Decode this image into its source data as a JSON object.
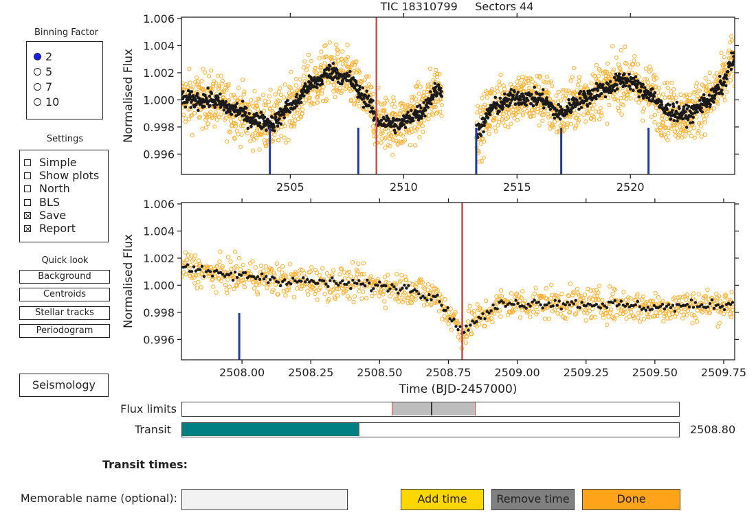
{
  "binning": {
    "title": "Binning Factor",
    "options": [
      {
        "label": "2",
        "selected": true
      },
      {
        "label": "5",
        "selected": false
      },
      {
        "label": "7",
        "selected": false
      },
      {
        "label": "10",
        "selected": false
      }
    ]
  },
  "settings": {
    "title": "Settings",
    "options": [
      {
        "label": "Simple",
        "checked": false
      },
      {
        "label": "Show plots",
        "checked": false
      },
      {
        "label": "North",
        "checked": false
      },
      {
        "label": "BLS",
        "checked": false
      },
      {
        "label": "Save",
        "checked": true
      },
      {
        "label": "Report",
        "checked": true
      }
    ]
  },
  "quick_look": {
    "title": "Quick look",
    "buttons": [
      "Background",
      "Centroids",
      "Stellar tracks",
      "Periodogram"
    ]
  },
  "seismology_label": "Seismology",
  "sliders": {
    "flux_limits_label": "Flux limits",
    "transit_label": "Transit",
    "transit_value": "2508.80",
    "transit_fill_fraction": 0.356
  },
  "transit_times_label": "Transit times:",
  "memorable_name": {
    "label": "Memorable name (optional):",
    "value": ""
  },
  "action_buttons": {
    "add": "Add time",
    "remove": "Remove time",
    "done": "Done"
  },
  "colors": {
    "raw_points": "#ffb133",
    "binned_points": "#1a1a1a",
    "transit_line": "#c0504d",
    "marker_ticks": "#1f3a93",
    "slider_fill": "#008080",
    "add_button": "#ffd700",
    "remove_button": "#808080",
    "done_button": "#ffa31a"
  },
  "chart_data": [
    {
      "type": "scatter",
      "title": "TIC 18310799     Sectors 44",
      "xlabel": "",
      "ylabel": "Normalised Flux",
      "xlim": [
        2500.2,
        2524.6
      ],
      "ylim": [
        0.9945,
        1.0061
      ],
      "x_ticks": [
        "2505",
        "2510",
        "2515",
        "2520"
      ],
      "x_tick_values": [
        2505,
        2510,
        2515,
        2520
      ],
      "y_ticks": [
        "0.996",
        "0.998",
        "1.000",
        "1.002",
        "1.004",
        "1.006"
      ],
      "y_tick_values": [
        0.996,
        0.998,
        1.0,
        1.002,
        1.004,
        1.006
      ],
      "data_gap": [
        2511.7,
        2513.2
      ],
      "selected_transit_x": 2508.8,
      "marker_x": [
        2504.1,
        2508.0,
        2513.2,
        2516.95,
        2520.8
      ],
      "trend": [
        [
          2500.3,
          1.0
        ],
        [
          2501.5,
          1.0
        ],
        [
          2502.5,
          0.9993
        ],
        [
          2503.5,
          0.9985
        ],
        [
          2504.2,
          0.9983
        ],
        [
          2505.0,
          0.9995
        ],
        [
          2506.0,
          1.0012
        ],
        [
          2506.8,
          1.0021
        ],
        [
          2507.5,
          1.0016
        ],
        [
          2508.3,
          1.0002
        ],
        [
          2508.9,
          0.9984
        ],
        [
          2509.8,
          0.9982
        ],
        [
          2510.6,
          0.999
        ],
        [
          2511.6,
          1.0008
        ],
        [
          2513.3,
          0.9978
        ],
        [
          2514.0,
          0.9995
        ],
        [
          2515.0,
          1.0002
        ],
        [
          2516.0,
          1.0001
        ],
        [
          2516.9,
          0.999
        ],
        [
          2517.8,
          1.0
        ],
        [
          2518.8,
          1.0008
        ],
        [
          2519.8,
          1.0015
        ],
        [
          2520.8,
          1.0005
        ],
        [
          2521.6,
          0.9992
        ],
        [
          2522.5,
          0.9989
        ],
        [
          2523.5,
          1.0
        ],
        [
          2524.0,
          1.001
        ],
        [
          2524.5,
          1.0028
        ]
      ],
      "scatter_spread": 0.0022
    },
    {
      "type": "scatter",
      "title": "",
      "xlabel": "Time (BJD-2457000)",
      "ylabel": "Normalised Flux",
      "xlim": [
        2507.78,
        2509.79
      ],
      "ylim": [
        0.9945,
        1.0061
      ],
      "x_ticks": [
        "2508.00",
        "2508.25",
        "2508.50",
        "2508.75",
        "2509.00",
        "2509.25",
        "2509.50",
        "2509.75"
      ],
      "x_tick_values": [
        2508.0,
        2508.25,
        2508.5,
        2508.75,
        2509.0,
        2509.25,
        2509.5,
        2509.75
      ],
      "y_ticks": [
        "0.996",
        "0.998",
        "1.000",
        "1.002",
        "1.004",
        "1.006"
      ],
      "y_tick_values": [
        0.996,
        0.998,
        1.0,
        1.002,
        1.004,
        1.006
      ],
      "selected_transit_x": 2508.8,
      "marker_x": [
        2507.99
      ],
      "trend": [
        [
          2507.78,
          1.0014
        ],
        [
          2507.9,
          1.0008
        ],
        [
          2508.0,
          1.0007
        ],
        [
          2508.2,
          1.0003
        ],
        [
          2508.4,
          1.0001
        ],
        [
          2508.6,
          0.9998
        ],
        [
          2508.7,
          0.9992
        ],
        [
          2508.77,
          0.9975
        ],
        [
          2508.8,
          0.9965
        ],
        [
          2508.85,
          0.9975
        ],
        [
          2508.95,
          0.9986
        ],
        [
          2509.1,
          0.9987
        ],
        [
          2509.3,
          0.9986
        ],
        [
          2509.5,
          0.9984
        ],
        [
          2509.79,
          0.9986
        ]
      ],
      "scatter_spread": 0.0013
    }
  ]
}
